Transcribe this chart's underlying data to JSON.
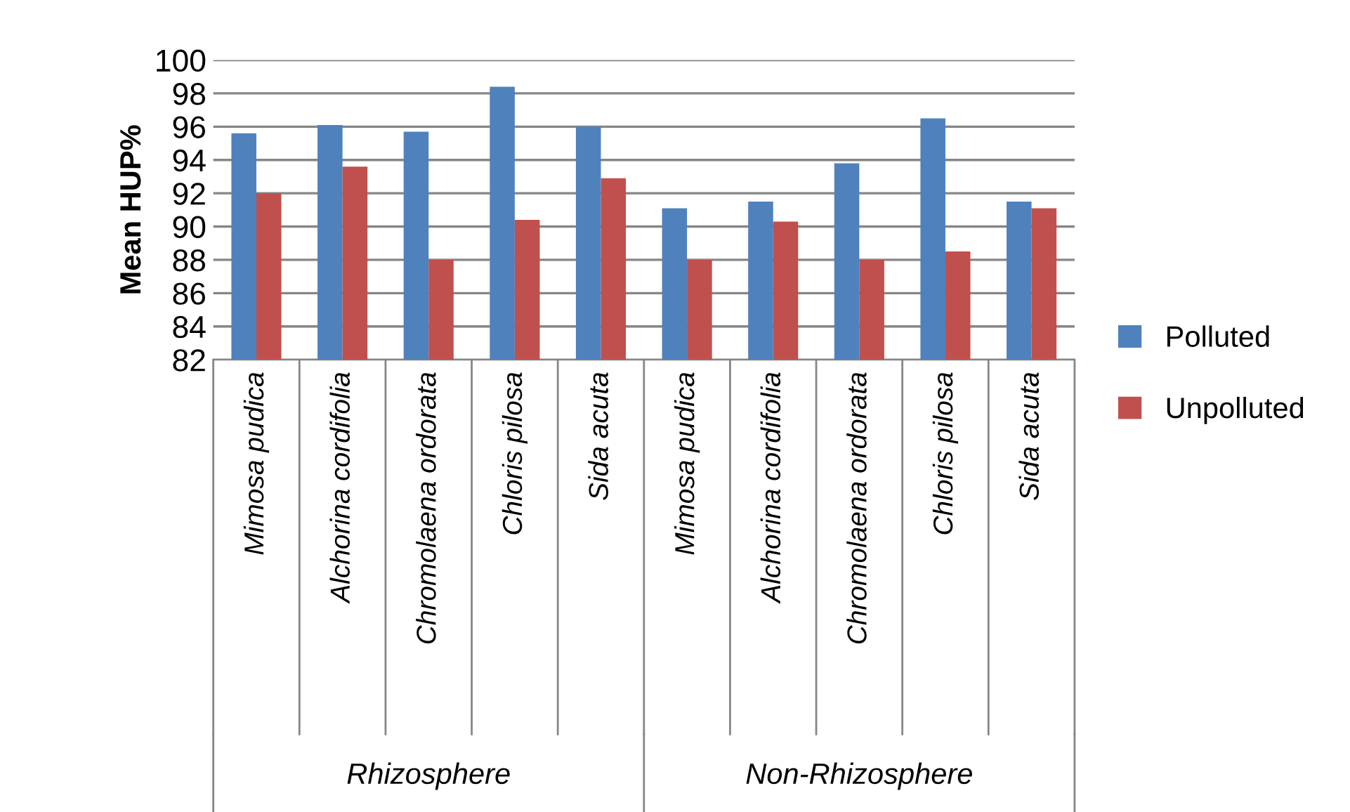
{
  "chart_data": {
    "type": "bar",
    "ylabel": "Mean HUP%",
    "categories": [
      "Mimosa pudica",
      "Alchorina cordifolia",
      "Chromolaena ordorata",
      "Chloris pilosa",
      "Sida acuta",
      "Mimosa pudica",
      "Alchorina cordifolia",
      "Chromolaena ordorata",
      "Chloris pilosa",
      "Sida acuta"
    ],
    "series": [
      {
        "name": "Polluted",
        "color": "#4f81bd",
        "values": [
          95.6,
          96.1,
          95.7,
          98.4,
          96.0,
          91.1,
          91.5,
          93.8,
          96.5,
          91.5
        ]
      },
      {
        "name": "Unpolluted",
        "color": "#c0504d",
        "values": [
          92.0,
          93.6,
          88.0,
          90.4,
          92.9,
          88.0,
          90.3,
          88.0,
          88.5,
          91.1
        ]
      }
    ],
    "annotations": [
      "Rhizosphere",
      "Non-Rhizosphere"
    ],
    "ylim": [
      82,
      100
    ],
    "yticks": [
      82,
      84,
      86,
      88,
      90,
      92,
      94,
      96,
      98,
      100
    ],
    "grid": "y",
    "legend": "right"
  }
}
